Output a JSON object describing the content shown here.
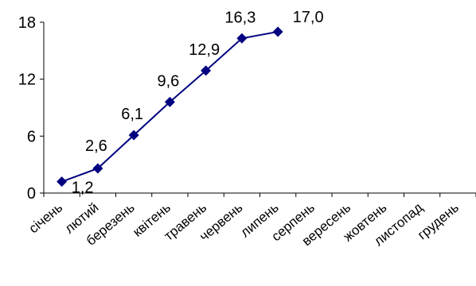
{
  "chart_data": {
    "type": "line",
    "categories": [
      "січень",
      "лютий",
      "березень",
      "квітень",
      "травень",
      "червень",
      "липень",
      "серпень",
      "вересень",
      "жовтень",
      "листопад",
      "грудень"
    ],
    "series": [
      {
        "values": [
          1.2,
          2.6,
          6.1,
          9.6,
          12.9,
          16.3,
          17.0,
          null,
          null,
          null,
          null,
          null
        ]
      }
    ],
    "data_labels": [
      "1,2",
      "2,6",
      "6,1",
      "9,6",
      "12,9",
      "16,3",
      "17,0"
    ],
    "y_ticks": [
      "0",
      "6",
      "12",
      "18"
    ],
    "ylim": [
      0,
      18
    ],
    "grid": false,
    "legend": "none",
    "title": "",
    "xlabel": "",
    "ylabel": "",
    "colors": {
      "line": "#000080",
      "marker": "#000080",
      "axis": "#000000"
    }
  }
}
